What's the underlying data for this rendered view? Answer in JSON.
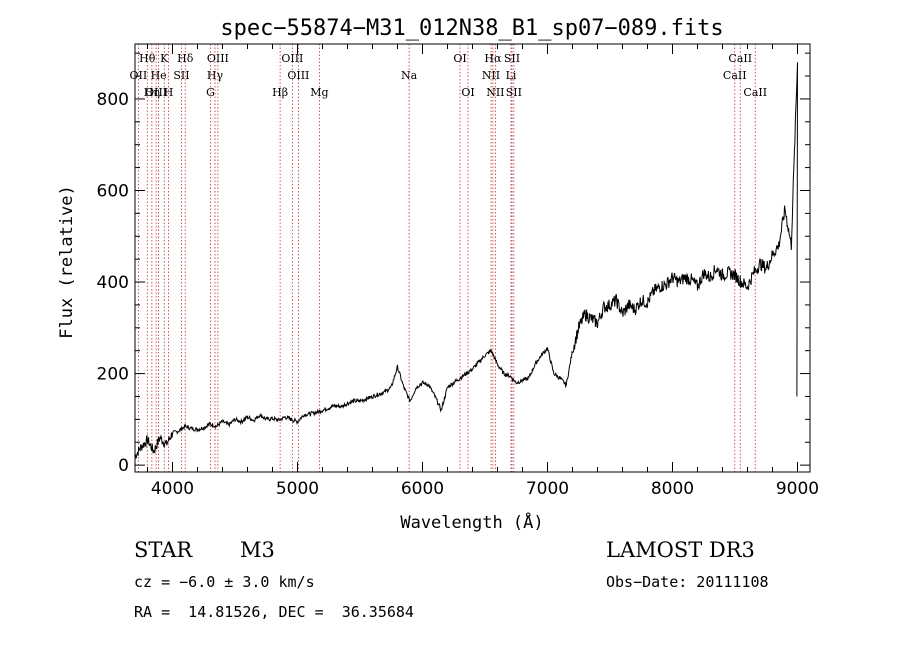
{
  "chart_data": {
    "type": "line",
    "title": "spec−55874−M31_012N38_B1_sp07−089.fits",
    "xlabel": "Wavelength (Å)",
    "ylabel": "Flux (relative)",
    "xlim": [
      3700,
      9100
    ],
    "ylim": [
      -15,
      920
    ],
    "xticks": [
      4000,
      5000,
      6000,
      7000,
      8000,
      9000
    ],
    "yticks": [
      0,
      200,
      400,
      600,
      800
    ],
    "grid": false,
    "series": [
      {
        "name": "flux",
        "x": [
          3700,
          3750,
          3800,
          3850,
          3900,
          3950,
          4000,
          4050,
          4100,
          4150,
          4200,
          4250,
          4300,
          4350,
          4400,
          4450,
          4500,
          4550,
          4600,
          4650,
          4700,
          4750,
          4800,
          4850,
          4900,
          4950,
          5000,
          5050,
          5100,
          5150,
          5200,
          5250,
          5300,
          5350,
          5400,
          5450,
          5500,
          5550,
          5600,
          5650,
          5700,
          5750,
          5800,
          5850,
          5900,
          5950,
          6000,
          6050,
          6100,
          6150,
          6200,
          6250,
          6300,
          6350,
          6400,
          6450,
          6500,
          6550,
          6600,
          6650,
          6700,
          6750,
          6800,
          6850,
          6900,
          6950,
          7000,
          7050,
          7100,
          7150,
          7200,
          7250,
          7300,
          7350,
          7400,
          7450,
          7500,
          7550,
          7600,
          7650,
          7700,
          7750,
          7800,
          7850,
          7900,
          7950,
          8000,
          8050,
          8100,
          8150,
          8200,
          8250,
          8300,
          8350,
          8400,
          8450,
          8500,
          8550,
          8600,
          8650,
          8700,
          8750,
          8800,
          8850,
          8900,
          8950,
          9000
        ],
        "y": [
          20,
          40,
          55,
          30,
          60,
          45,
          70,
          75,
          85,
          80,
          78,
          82,
          90,
          85,
          95,
          88,
          100,
          95,
          105,
          98,
          110,
          100,
          102,
          98,
          105,
          100,
          95,
          110,
          112,
          115,
          120,
          125,
          130,
          128,
          135,
          140,
          140,
          145,
          150,
          155,
          160,
          170,
          215,
          170,
          140,
          170,
          180,
          175,
          150,
          120,
          170,
          180,
          190,
          200,
          210,
          225,
          240,
          250,
          220,
          200,
          195,
          180,
          185,
          190,
          220,
          240,
          255,
          200,
          190,
          175,
          250,
          300,
          330,
          320,
          310,
          345,
          350,
          360,
          330,
          350,
          340,
          360,
          355,
          380,
          390,
          395,
          410,
          400,
          410,
          405,
          390,
          420,
          410,
          430,
          415,
          420,
          415,
          400,
          390,
          420,
          440,
          430,
          460,
          480,
          560,
          480,
          880
        ]
      }
    ],
    "line_annotations": [
      {
        "label": "Hθ",
        "x": 3798,
        "row": 1
      },
      {
        "label": "OII",
        "x": 3727,
        "row": 2
      },
      {
        "label": "OIII",
        "x": 3869,
        "row": 3
      },
      {
        "label": "Hη",
        "x": 3835,
        "row": 3
      },
      {
        "label": "He",
        "x": 3889,
        "row": 2
      },
      {
        "label": "K",
        "x": 3934,
        "row": 1
      },
      {
        "label": "SII",
        "x": 4072,
        "row": 2
      },
      {
        "label": "H",
        "x": 3968,
        "row": 3
      },
      {
        "label": "Hδ",
        "x": 4102,
        "row": 1
      },
      {
        "label": "OIII",
        "x": 4363,
        "row": 1
      },
      {
        "label": "Hγ",
        "x": 4340,
        "row": 2
      },
      {
        "label": "G",
        "x": 4304,
        "row": 3
      },
      {
        "label": "OIII",
        "x": 4959,
        "row": 1
      },
      {
        "label": "OIII",
        "x": 5007,
        "row": 2
      },
      {
        "label": "Hβ",
        "x": 4861,
        "row": 3
      },
      {
        "label": "Mg",
        "x": 5175,
        "row": 3
      },
      {
        "label": "Na",
        "x": 5893,
        "row": 2
      },
      {
        "label": "OI",
        "x": 6300,
        "row": 1
      },
      {
        "label": "OI",
        "x": 6364,
        "row": 3
      },
      {
        "label": "Hα",
        "x": 6563,
        "row": 1
      },
      {
        "label": "SII",
        "x": 6716,
        "row": 1
      },
      {
        "label": "NII",
        "x": 6548,
        "row": 2
      },
      {
        "label": "Li",
        "x": 6708,
        "row": 2
      },
      {
        "label": "NII",
        "x": 6583,
        "row": 3
      },
      {
        "label": "SII",
        "x": 6731,
        "row": 3
      },
      {
        "label": "CaII",
        "x": 8542,
        "row": 1
      },
      {
        "label": "CaII",
        "x": 8498,
        "row": 2
      },
      {
        "label": "CaII",
        "x": 8662,
        "row": 3
      }
    ]
  },
  "info": {
    "object_class": "STAR",
    "subclass": "M3",
    "survey": "LAMOST DR3",
    "cz": "cz = −6.0 ± 3.0 km/s",
    "obs_date": "Obs−Date: 20111108",
    "coords": "RA =  14.81526, DEC =  36.35684"
  }
}
